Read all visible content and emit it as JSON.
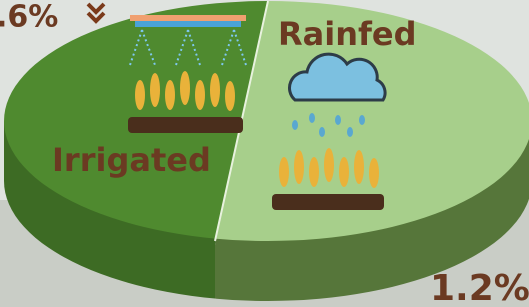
{
  "labels": {
    "top_left": ".6%",
    "rainfed": "Rainfed",
    "irrigated": "Irrigated",
    "bottom_right": "1.2%"
  }
}
